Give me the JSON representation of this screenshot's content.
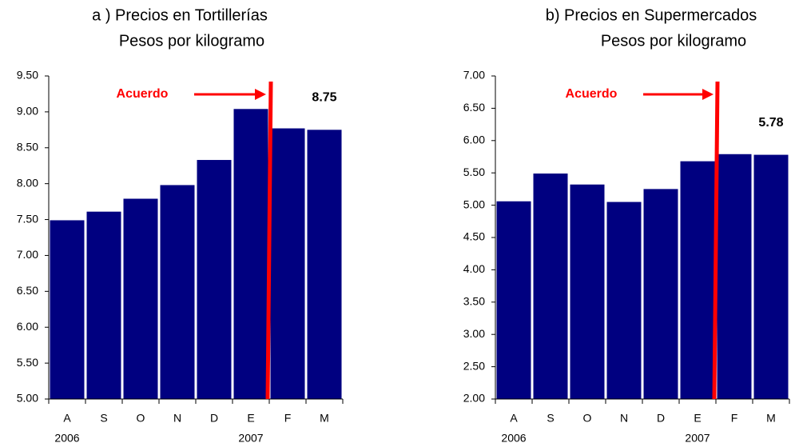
{
  "chart_data": [
    {
      "type": "bar",
      "title": "a ) Precios en Tortillerías",
      "subtitle": "Pesos por kilogramo",
      "categories": [
        "A",
        "S",
        "O",
        "N",
        "D",
        "E",
        "F",
        "M"
      ],
      "category_groups": [
        "2006",
        null,
        null,
        null,
        null,
        "2007",
        null,
        null
      ],
      "values": [
        7.49,
        7.61,
        7.79,
        7.98,
        8.33,
        9.04,
        8.77,
        8.75
      ],
      "color": "#000080",
      "ylim": [
        5,
        9.5
      ],
      "yticks": [
        {
          "value": 5,
          "label": "5.00"
        },
        {
          "value": 5.5,
          "label": "5.50"
        },
        {
          "value": 6,
          "label": "6.00"
        },
        {
          "value": 6.5,
          "label": "6.50"
        },
        {
          "value": 7,
          "label": "7.00"
        },
        {
          "value": 7.5,
          "label": "7.50"
        },
        {
          "value": 8,
          "label": "8.00"
        },
        {
          "value": 8.5,
          "label": "8.50"
        },
        {
          "value": 9,
          "label": "9.00"
        },
        {
          "value": 9.5,
          "label": "9.50"
        }
      ],
      "annotation": "Acuerdo"
    },
    {
      "type": "bar",
      "title": "b) Precios en Supermercados",
      "subtitle": "Pesos por kilogramo",
      "categories": [
        "A",
        "S",
        "O",
        "N",
        "D",
        "E",
        "F",
        "M"
      ],
      "category_groups": [
        "2006",
        null,
        null,
        null,
        null,
        "2007",
        null,
        null
      ],
      "values": [
        5.06,
        5.49,
        5.32,
        5.05,
        5.25,
        5.68,
        5.79,
        5.78
      ],
      "color": "#000080",
      "ylim": [
        2,
        7
      ],
      "yticks": [
        {
          "value": 2,
          "label": "2.00"
        },
        {
          "value": 2.5,
          "label": "2.50"
        },
        {
          "value": 3,
          "label": "3.00"
        },
        {
          "value": 3.5,
          "label": "3.50"
        },
        {
          "value": 4,
          "label": "4.00"
        },
        {
          "value": 4.5,
          "label": "4.50"
        },
        {
          "value": 5,
          "label": "5.00"
        },
        {
          "value": 5.5,
          "label": "5.50"
        },
        {
          "value": 6,
          "label": "6.00"
        },
        {
          "value": 6.5,
          "label": "6.50"
        },
        {
          "value": 7,
          "label": "7.00"
        }
      ],
      "annotation": "Acuerdo"
    }
  ]
}
